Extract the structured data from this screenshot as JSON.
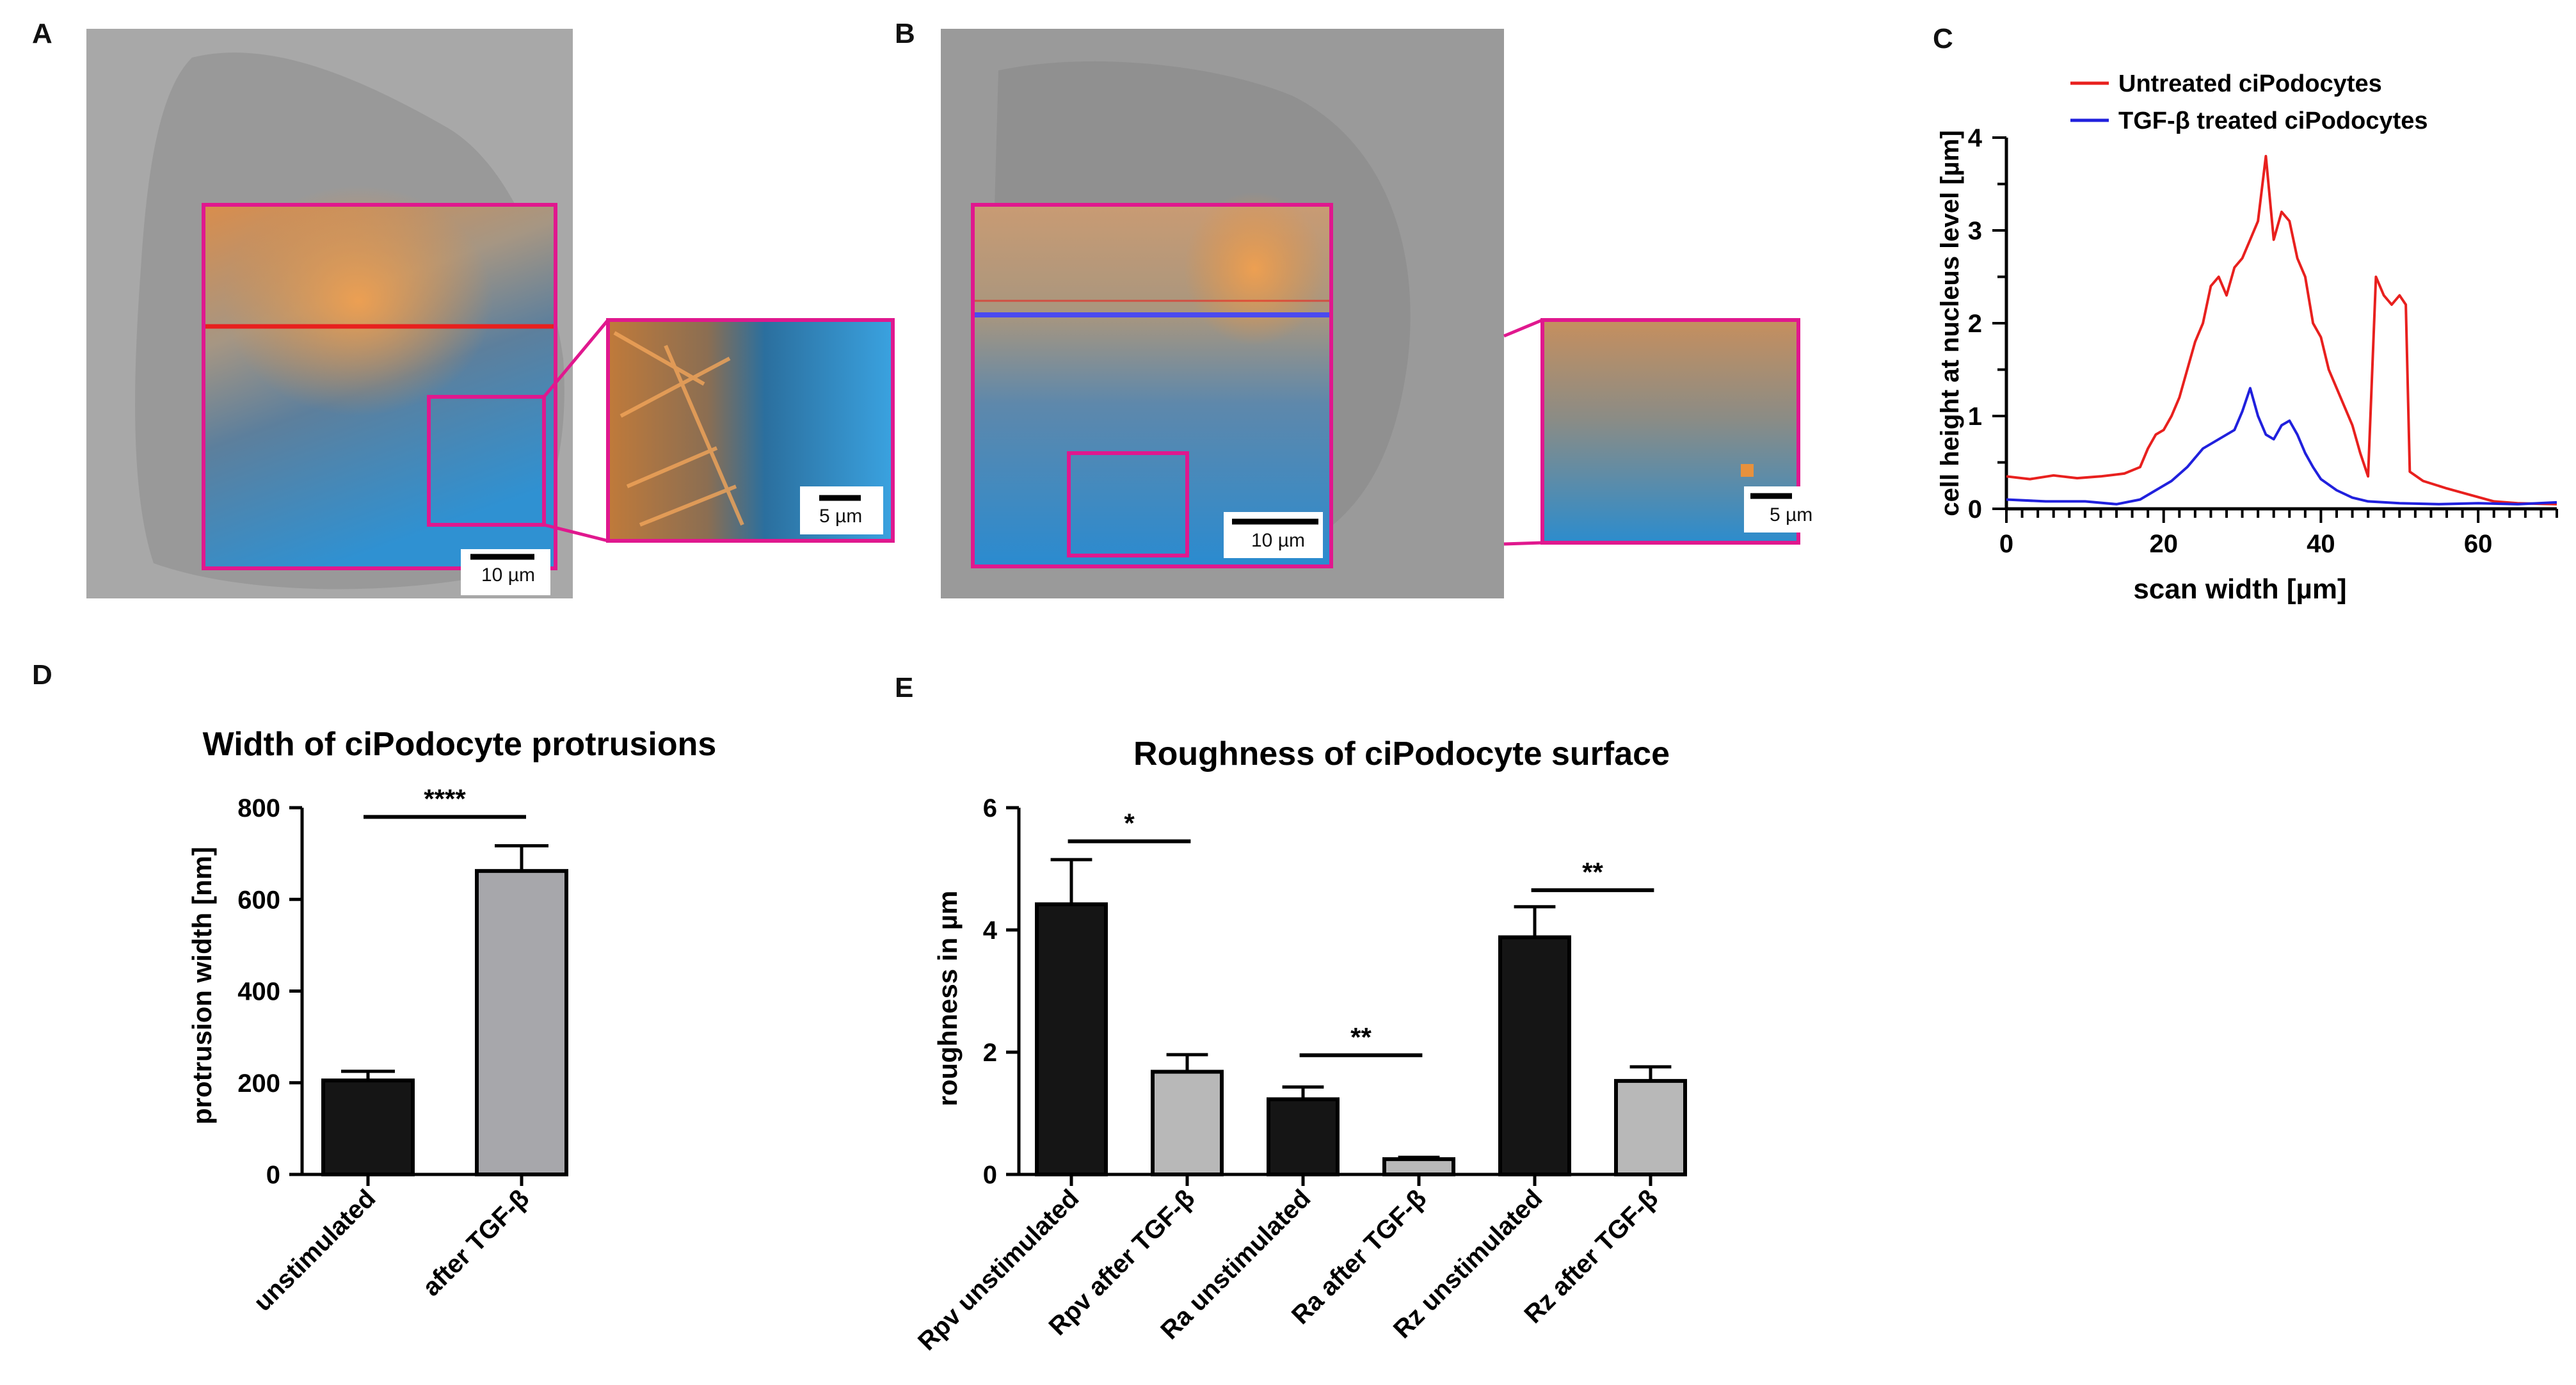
{
  "panels": {
    "a": {
      "letter": "A",
      "scalebar_main": "10 µm",
      "scalebar_zoom": "5 µm"
    },
    "b": {
      "letter": "B",
      "scalebar_main": "10 µm",
      "scalebar_zoom": "5 µm"
    },
    "c": {
      "letter": "C"
    },
    "d": {
      "letter": "D"
    },
    "e": {
      "letter": "E"
    }
  },
  "colors": {
    "frame": "#e0188e",
    "orange": "#e8913c",
    "blue": "#2e8fd0",
    "line_red": "#e8201e",
    "line_blue": "#2020dd",
    "bar_black": "#151515",
    "bar_gray": "#a7a7ab",
    "bar_lightgray": "#b8b8b8"
  },
  "chart_data": [
    {
      "id": "C",
      "type": "line",
      "title": "",
      "xlabel": "scan width [µm]",
      "ylabel": "cell height at nucleus level [µm]",
      "xlim": [
        0,
        70
      ],
      "ylim": [
        0,
        4
      ],
      "xticks": [
        0,
        20,
        40,
        60
      ],
      "yticks": [
        0,
        1,
        2,
        3,
        4
      ],
      "legend_position": "top",
      "series": [
        {
          "name": "Untreated ciPodocytes",
          "color": "#e8201e",
          "points": [
            [
              0,
              0.35
            ],
            [
              3,
              0.32
            ],
            [
              6,
              0.36
            ],
            [
              9,
              0.33
            ],
            [
              12,
              0.35
            ],
            [
              15,
              0.38
            ],
            [
              17,
              0.45
            ],
            [
              18,
              0.65
            ],
            [
              19,
              0.8
            ],
            [
              20,
              0.85
            ],
            [
              21,
              1.0
            ],
            [
              22,
              1.2
            ],
            [
              23,
              1.5
            ],
            [
              24,
              1.8
            ],
            [
              25,
              2.0
            ],
            [
              26,
              2.4
            ],
            [
              27,
              2.5
            ],
            [
              28,
              2.3
            ],
            [
              29,
              2.6
            ],
            [
              30,
              2.7
            ],
            [
              31,
              2.9
            ],
            [
              32,
              3.1
            ],
            [
              33,
              3.8
            ],
            [
              34,
              2.9
            ],
            [
              35,
              3.2
            ],
            [
              36,
              3.1
            ],
            [
              37,
              2.7
            ],
            [
              38,
              2.5
            ],
            [
              39,
              2.0
            ],
            [
              40,
              1.85
            ],
            [
              41,
              1.5
            ],
            [
              42,
              1.3
            ],
            [
              43,
              1.1
            ],
            [
              44,
              0.9
            ],
            [
              45,
              0.6
            ],
            [
              46,
              0.35
            ],
            [
              47,
              2.5
            ],
            [
              48,
              2.3
            ],
            [
              49,
              2.2
            ],
            [
              50,
              2.3
            ],
            [
              50.8,
              2.2
            ],
            [
              51.3,
              0.4
            ],
            [
              53,
              0.3
            ],
            [
              56,
              0.22
            ],
            [
              59,
              0.15
            ],
            [
              62,
              0.08
            ],
            [
              65,
              0.06
            ],
            [
              70,
              0.05
            ]
          ]
        },
        {
          "name": "TGF-β treated ciPodocytes",
          "color": "#2020dd",
          "points": [
            [
              0,
              0.1
            ],
            [
              5,
              0.08
            ],
            [
              10,
              0.08
            ],
            [
              14,
              0.05
            ],
            [
              17,
              0.1
            ],
            [
              19,
              0.2
            ],
            [
              21,
              0.3
            ],
            [
              23,
              0.45
            ],
            [
              25,
              0.65
            ],
            [
              27,
              0.75
            ],
            [
              29,
              0.85
            ],
            [
              30,
              1.05
            ],
            [
              31,
              1.3
            ],
            [
              32,
              1.0
            ],
            [
              33,
              0.8
            ],
            [
              34,
              0.75
            ],
            [
              35,
              0.9
            ],
            [
              36,
              0.95
            ],
            [
              37,
              0.8
            ],
            [
              38,
              0.6
            ],
            [
              39,
              0.45
            ],
            [
              40,
              0.32
            ],
            [
              42,
              0.2
            ],
            [
              44,
              0.12
            ],
            [
              46,
              0.08
            ],
            [
              50,
              0.06
            ],
            [
              55,
              0.05
            ],
            [
              60,
              0.06
            ],
            [
              65,
              0.05
            ],
            [
              70,
              0.07
            ]
          ]
        }
      ]
    },
    {
      "id": "D",
      "type": "bar",
      "title": "Width of ciPodocyte protrusions",
      "xlabel": "",
      "ylabel": "protrusion width [nm]",
      "ylim": [
        0,
        800
      ],
      "yticks": [
        0,
        200,
        400,
        600,
        800
      ],
      "categories": [
        "unstimulated",
        "after TGF-β"
      ],
      "values": [
        205,
        662
      ],
      "errors": [
        20,
        55
      ],
      "bar_colors": [
        "#151515",
        "#a7a7ab"
      ],
      "significance": [
        {
          "from": 0,
          "to": 1,
          "label": "****",
          "y": 780
        }
      ]
    },
    {
      "id": "E",
      "type": "bar",
      "title": "Roughness of ciPodocyte surface",
      "xlabel": "",
      "ylabel": "roughness in µm",
      "ylim": [
        0,
        6
      ],
      "yticks": [
        0,
        2,
        4,
        6
      ],
      "categories": [
        "Rpv unstimulated",
        "Rpv after TGF-β",
        "Ra unstimulated",
        "Ra after TGF-β",
        "Rz unstimulated",
        "Rz after TGF-β"
      ],
      "values": [
        4.42,
        1.68,
        1.23,
        0.25,
        3.88,
        1.53
      ],
      "errors": [
        0.73,
        0.28,
        0.2,
        0.03,
        0.5,
        0.23
      ],
      "bar_colors": [
        "#151515",
        "#b8b8b8",
        "#151515",
        "#b8b8b8",
        "#151515",
        "#b8b8b8"
      ],
      "significance": [
        {
          "from": 0,
          "to": 1,
          "label": "*",
          "y": 5.45
        },
        {
          "from": 2,
          "to": 3,
          "label": "**",
          "y": 1.95
        },
        {
          "from": 4,
          "to": 5,
          "label": "**",
          "y": 4.65
        }
      ]
    }
  ]
}
